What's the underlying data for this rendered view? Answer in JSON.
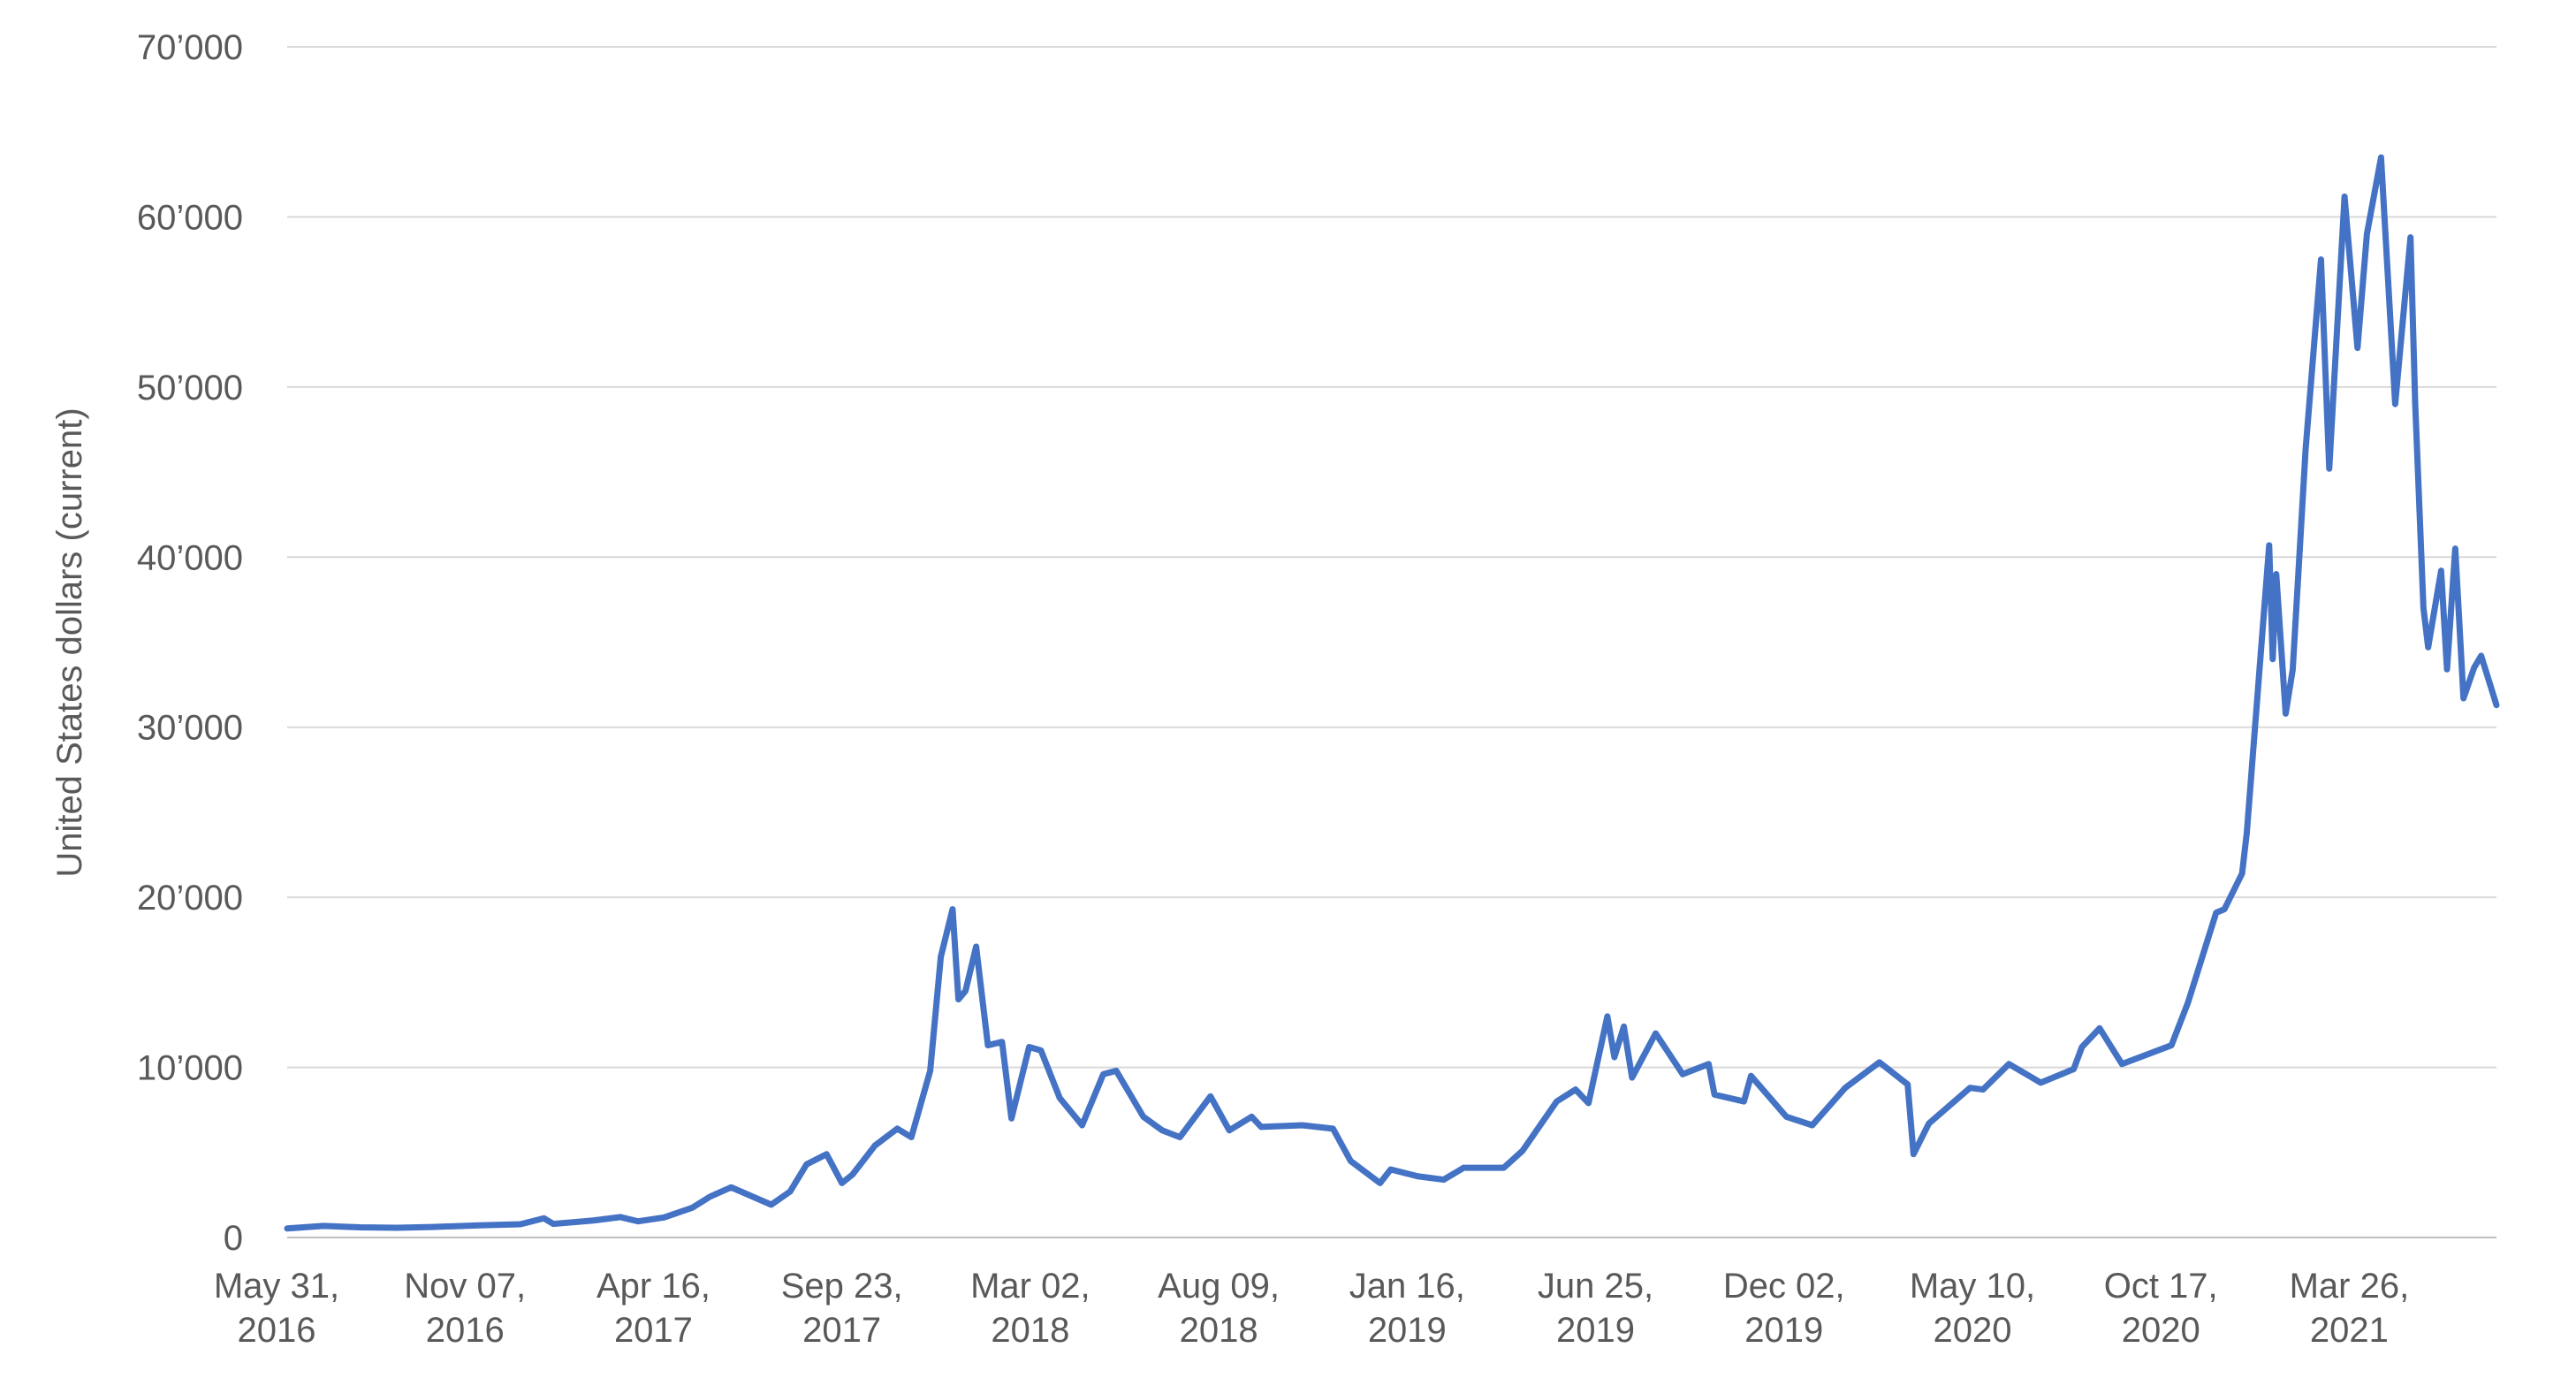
{
  "chart_data": {
    "type": "line",
    "y_label": "United States dollars (current)",
    "ylim": [
      0,
      70000
    ],
    "yticks": [
      0,
      {
        "value": 10000,
        "label": "10’000"
      },
      {
        "value": 20000,
        "label": "20’000"
      },
      {
        "value": 30000,
        "label": "30’000"
      },
      {
        "value": 40000,
        "label": "40’000"
      },
      {
        "value": 50000,
        "label": "50’000"
      },
      {
        "value": 60000,
        "label": "60’000"
      },
      {
        "value": 70000,
        "label": "70’000"
      }
    ],
    "xlim": [
      "2016-05-31",
      "2021-07-20"
    ],
    "xticks": [
      {
        "value": "2016-05-31",
        "label": "May 31, 2016"
      },
      {
        "value": "2016-11-07",
        "label": "Nov 07, 2016"
      },
      {
        "value": "2017-04-16",
        "label": "Apr 16, 2017"
      },
      {
        "value": "2017-09-23",
        "label": "Sep 23, 2017"
      },
      {
        "value": "2018-03-02",
        "label": "Mar 02, 2018"
      },
      {
        "value": "2018-08-09",
        "label": "Aug 09, 2018"
      },
      {
        "value": "2019-01-16",
        "label": "Jan 16, 2019"
      },
      {
        "value": "2019-06-25",
        "label": "Jun 25, 2019"
      },
      {
        "value": "2019-12-02",
        "label": "Dec 02, 2019"
      },
      {
        "value": "2020-05-10",
        "label": "May 10, 2020"
      },
      {
        "value": "2020-10-17",
        "label": "Oct 17, 2020"
      },
      {
        "value": "2021-03-26",
        "label": "Mar 26, 2021"
      }
    ],
    "grid": true,
    "series": [
      {
        "color": "#4472c4",
        "x": [
          "2016-05-31",
          "2016-07-01",
          "2016-08-01",
          "2016-09-01",
          "2016-10-01",
          "2016-11-07",
          "2016-12-15",
          "2017-01-04",
          "2017-01-12",
          "2017-02-15",
          "2017-03-10",
          "2017-03-25",
          "2017-04-16",
          "2017-05-10",
          "2017-05-25",
          "2017-06-12",
          "2017-07-16",
          "2017-08-01",
          "2017-08-15",
          "2017-09-01",
          "2017-09-14",
          "2017-09-23",
          "2017-10-12",
          "2017-10-31",
          "2017-11-12",
          "2017-11-28",
          "2017-12-07",
          "2017-12-17",
          "2017-12-22",
          "2017-12-28",
          "2018-01-06",
          "2018-01-16",
          "2018-01-28",
          "2018-02-05",
          "2018-02-20",
          "2018-03-02",
          "2018-03-18",
          "2018-04-06",
          "2018-04-24",
          "2018-05-05",
          "2018-05-28",
          "2018-06-13",
          "2018-06-28",
          "2018-07-24",
          "2018-08-09",
          "2018-08-28",
          "2018-09-05",
          "2018-10-10",
          "2018-11-05",
          "2018-11-20",
          "2018-12-15",
          "2018-12-24",
          "2019-01-16",
          "2019-02-07",
          "2019-02-24",
          "2019-03-30",
          "2019-04-15",
          "2019-05-14",
          "2019-05-30",
          "2019-06-10",
          "2019-06-26",
          "2019-07-02",
          "2019-07-10",
          "2019-07-17",
          "2019-08-06",
          "2019-08-29",
          "2019-09-20",
          "2019-09-25",
          "2019-10-20",
          "2019-10-26",
          "2019-11-25",
          "2019-12-17",
          "2020-01-14",
          "2020-02-12",
          "2020-03-07",
          "2020-03-12",
          "2020-03-25",
          "2020-04-29",
          "2020-05-10",
          "2020-06-01",
          "2020-06-28",
          "2020-07-26",
          "2020-08-02",
          "2020-08-17",
          "2020-09-05",
          "2020-10-17",
          "2020-10-31",
          "2020-11-24",
          "2020-12-01",
          "2020-12-16",
          "2020-12-20",
          "2021-01-08",
          "2021-01-11",
          "2021-01-14",
          "2021-01-22",
          "2021-01-28",
          "2021-02-08",
          "2021-02-21",
          "2021-02-28",
          "2021-03-13",
          "2021-03-24",
          "2021-04-01",
          "2021-04-13",
          "2021-04-25",
          "2021-05-08",
          "2021-05-12",
          "2021-05-19",
          "2021-05-23",
          "2021-06-03",
          "2021-06-08",
          "2021-06-15",
          "2021-06-22",
          "2021-07-01",
          "2021-07-07",
          "2021-07-20"
        ],
        "values": [
          530,
          680,
          600,
          575,
          615,
          710,
          780,
          1130,
          800,
          1000,
          1200,
          950,
          1180,
          1750,
          2400,
          2950,
          1930,
          2700,
          4300,
          4900,
          3200,
          3700,
          5400,
          6400,
          5900,
          9800,
          16500,
          19300,
          14000,
          14500,
          17100,
          11300,
          11500,
          7000,
          11200,
          11000,
          8200,
          6600,
          9600,
          9800,
          7100,
          6300,
          5900,
          8300,
          6300,
          7100,
          6500,
          6600,
          6400,
          4500,
          3200,
          4000,
          3600,
          3400,
          4100,
          4100,
          5100,
          8000,
          8700,
          7900,
          13000,
          10600,
          12400,
          9400,
          12000,
          9600,
          10200,
          8400,
          8000,
          9500,
          7100,
          6600,
          8800,
          10300,
          9000,
          4900,
          6700,
          8800,
          8700,
          10200,
          9100,
          9900,
          11200,
          12300,
          10200,
          11300,
          13800,
          19100,
          19300,
          21400,
          23800,
          40700,
          34000,
          39000,
          30800,
          33400,
          46400,
          57500,
          45200,
          61200,
          52300,
          59000,
          63500,
          49000,
          58800,
          49000,
          37000,
          34700,
          39200,
          33400,
          40500,
          31700,
          33500,
          34200,
          31300
        ]
      }
    ]
  }
}
